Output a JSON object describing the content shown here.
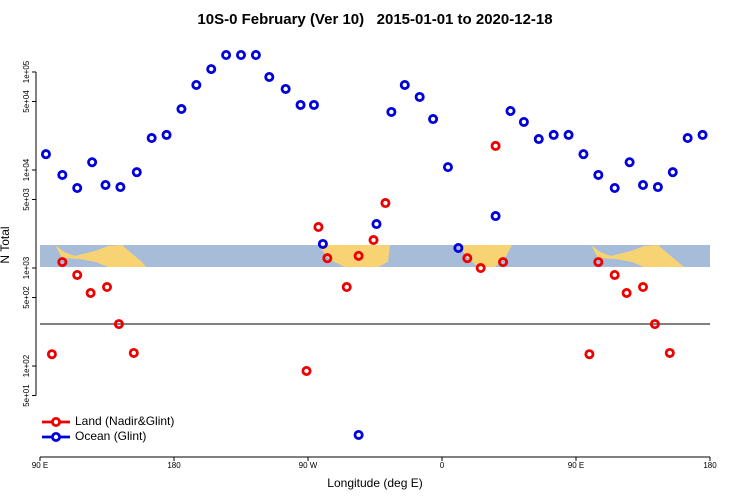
{
  "chart_data": {
    "type": "scatter",
    "title": "10S-0 February (Ver 10)   2015-01-01 to 2020-12-18",
    "x_label": "Longitude (deg E)",
    "y_label": "N Total",
    "log_y": true,
    "legend": "bottom-left",
    "xlim": [
      90,
      540
    ],
    "xticks": [
      {
        "value": 90,
        "label": "90 E"
      },
      180,
      {
        "value": 270,
        "label": "90 W"
      },
      {
        "value": 360,
        "label": "0"
      },
      {
        "value": 450,
        "label": "90 E"
      },
      {
        "value": 540,
        "label": "180"
      }
    ],
    "ylim": [
      11.8,
      212000
    ],
    "yticks": [
      {
        "value": 50,
        "label": "5e+01"
      },
      {
        "value": 100,
        "label": "1e+02"
      },
      {
        "value": 500,
        "label": "5e+02"
      },
      {
        "value": 1000,
        "label": "1e+03"
      },
      {
        "value": 5000,
        "label": "5e+03"
      },
      {
        "value": 10000,
        "label": "1e+04"
      },
      {
        "value": 50000,
        "label": "5e+04"
      },
      {
        "value": 100000,
        "label": "1e+05"
      }
    ],
    "series": [
      {
        "name": "Land (Nadir&Glint)",
        "color": "#ee0000",
        "x": [
          98,
          105,
          115,
          124,
          135,
          143,
          153,
          269,
          277,
          283,
          296,
          304,
          314,
          322,
          377,
          386,
          396,
          401,
          459,
          465,
          476,
          484,
          495,
          503,
          513
        ],
        "values": [
          132,
          1150,
          849,
          556,
          640,
          268,
          136,
          89,
          2620,
          1260,
          640,
          1330,
          1930,
          4600,
          1260,
          1000,
          17600,
          1150,
          132,
          1150,
          849,
          556,
          640,
          268,
          136
        ]
      },
      {
        "name": "Ocean (Glint)",
        "color": "#0000dd",
        "x": [
          94,
          105,
          115,
          125,
          134,
          144,
          155,
          165,
          175,
          185,
          195,
          205,
          215,
          225,
          235,
          244,
          255,
          265,
          274,
          280,
          304,
          316,
          326,
          335,
          345,
          354,
          364,
          371,
          396,
          406,
          415,
          425,
          435,
          445,
          455,
          465,
          476,
          486,
          495,
          505,
          515,
          525,
          535
        ],
        "values": [
          14500,
          8900,
          6550,
          12000,
          7030,
          6700,
          9500,
          21200,
          22800,
          41900,
          73700,
          107000,
          149000,
          149000,
          149000,
          88900,
          67100,
          46100,
          46100,
          1760,
          19.8,
          2810,
          39100,
          73700,
          55600,
          33100,
          10700,
          1600,
          3390,
          40000,
          30900,
          20700,
          22800,
          22800,
          14500,
          8900,
          6550,
          12000,
          7030,
          6700,
          9500,
          21200,
          22800
        ]
      }
    ]
  }
}
